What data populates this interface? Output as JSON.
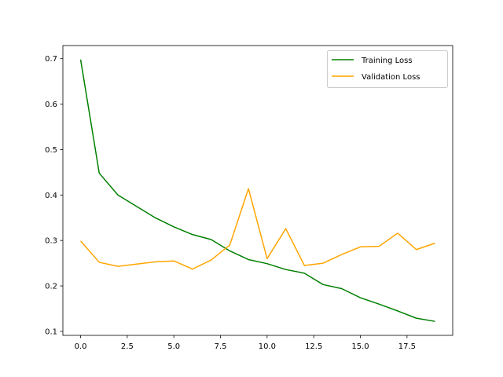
{
  "chart_data": {
    "type": "line",
    "title": "",
    "xlabel": "",
    "ylabel": "",
    "x": [
      0,
      1,
      2,
      3,
      4,
      5,
      6,
      7,
      8,
      9,
      10,
      11,
      12,
      13,
      14,
      15,
      16,
      17,
      18,
      19
    ],
    "series": [
      {
        "name": "Training Loss",
        "color": "#008000",
        "values": [
          0.698,
          0.448,
          0.4,
          0.375,
          0.35,
          0.33,
          0.313,
          0.302,
          0.277,
          0.258,
          0.249,
          0.236,
          0.228,
          0.203,
          0.194,
          0.174,
          0.16,
          0.145,
          0.129,
          0.122
        ]
      },
      {
        "name": "Validation Loss",
        "color": "#FFA500",
        "values": [
          0.299,
          0.252,
          0.243,
          0.248,
          0.253,
          0.255,
          0.237,
          0.257,
          0.29,
          0.414,
          0.26,
          0.326,
          0.245,
          0.25,
          0.269,
          0.286,
          0.287,
          0.316,
          0.28,
          0.294
        ]
      }
    ],
    "xlim": [
      -0.95,
      19.95
    ],
    "ylim": [
      0.0912,
      0.7288
    ],
    "xticks": [
      "0.0",
      "2.5",
      "5.0",
      "7.5",
      "10.0",
      "12.5",
      "15.0",
      "17.5"
    ],
    "xtick_values": [
      0,
      2.5,
      5,
      7.5,
      10,
      12.5,
      15,
      17.5
    ],
    "yticks": [
      "0.1",
      "0.2",
      "0.3",
      "0.4",
      "0.5",
      "0.6",
      "0.7"
    ],
    "ytick_values": [
      0.1,
      0.2,
      0.3,
      0.4,
      0.5,
      0.6,
      0.7
    ],
    "grid": false,
    "legend_position": "top-right"
  }
}
